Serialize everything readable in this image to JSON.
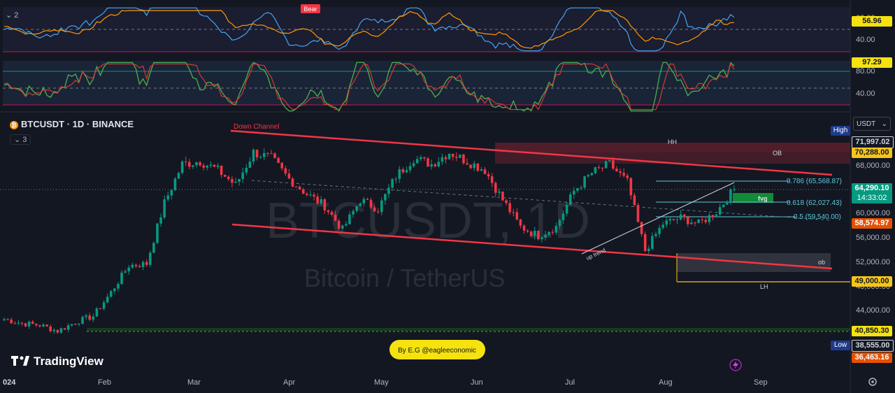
{
  "header": {
    "symbol": "BTCUSDT · 1D · BINANCE",
    "indicator_count": "3",
    "top_indicator_count": "2",
    "currency_selector": "USDT",
    "watermark_symbol": "BTCUSDT, 1D",
    "watermark_name": "Bitcoin / TetherUS"
  },
  "branding": {
    "logo_text": "TradingView",
    "credit": "By E.G @eagleeconomic"
  },
  "colors": {
    "bg": "#131722",
    "up": "#089981",
    "down": "#f23645",
    "channel": "#f23645",
    "fib": "#5ec8d8",
    "band": "#1e2a3d"
  },
  "time_axis": {
    "labels": [
      "024",
      "Feb",
      "Mar",
      "Apr",
      "May",
      "Jun",
      "Jul",
      "Aug",
      "Sep"
    ]
  },
  "price_axis": {
    "labels": [
      "68,000.00",
      "60,000.00",
      "56,000.00",
      "52,000.00",
      "48,000.00",
      "44,000.00"
    ]
  },
  "rsi_panel_1": {
    "labels": [
      "40.00"
    ],
    "value_tag": "56.96",
    "badge": "Bear",
    "partial_label": "60.00"
  },
  "rsi_panel_2": {
    "labels": [
      "80.00",
      "40.00"
    ],
    "value_tag": "97.29"
  },
  "price_tags": {
    "high_label": "High",
    "high": "71,997.02",
    "ob_level": "70,288.00",
    "current": "64,290.10",
    "countdown": "14:33:02",
    "red_level": "58,574.97",
    "yellow_level": "49,000.00",
    "green_level": "40,850.30",
    "low_label": "Low",
    "low": "38,555.00",
    "orange_level": "36,463.16"
  },
  "annotations": {
    "down_channel": "Down Channel",
    "hh": "HH",
    "ob_upper": "OB",
    "ob_lower": "ob",
    "fvg": "fvg",
    "lh": "LH",
    "up_trend": "up trend",
    "fib_786": "0.786 (65,568.87)",
    "fib_618": "0.618 (62,027.43)",
    "fib_5": "0.5 (59,540.00)"
  },
  "chart_data": {
    "type": "candlestick",
    "symbol": "BTCUSDT",
    "interval": "1D",
    "x_range": [
      "2024-01-01",
      "2024-09-20"
    ],
    "ylim": [
      36000,
      73000
    ],
    "approx_closes_weekly": [
      42500,
      41800,
      41500,
      40500,
      42000,
      43000,
      47000,
      51500,
      51800,
      62000,
      68500,
      69000,
      67500,
      65000,
      70500,
      69500,
      66000,
      63500,
      61500,
      57500,
      62500,
      61000,
      66500,
      69500,
      68500,
      70500,
      69000,
      67500,
      62500,
      58000,
      56500,
      58000,
      64000,
      67000,
      68500,
      65500,
      54000,
      58500,
      59500,
      58500,
      60500,
      64290
    ],
    "channel_upper": {
      "from": [
        "2024-03-14",
        73000
      ],
      "to": [
        "2024-09-03",
        66000
      ]
    },
    "channel_lower": {
      "from": [
        "2024-03-14",
        59000
      ],
      "to": [
        "2024-09-03",
        51000
      ]
    },
    "fib_levels": [
      {
        "level": 0.786,
        "price": 65568.87
      },
      {
        "level": 0.618,
        "price": 62027.43
      },
      {
        "level": 0.5,
        "price": 59540.0
      }
    ],
    "zones": [
      {
        "name": "OB",
        "from": 68500,
        "to": 71997.02
      },
      {
        "name": "fvg",
        "from": 62000,
        "to": 63400
      },
      {
        "name": "ob",
        "from": 50800,
        "to": 53800
      }
    ],
    "levels": [
      71997.02,
      70288.0,
      64290.1,
      58574.97,
      49000.0,
      40850.3,
      38555.0,
      36463.16
    ],
    "high": 71997.02,
    "low": 38555.0,
    "last": 64290.1,
    "grid": false
  }
}
